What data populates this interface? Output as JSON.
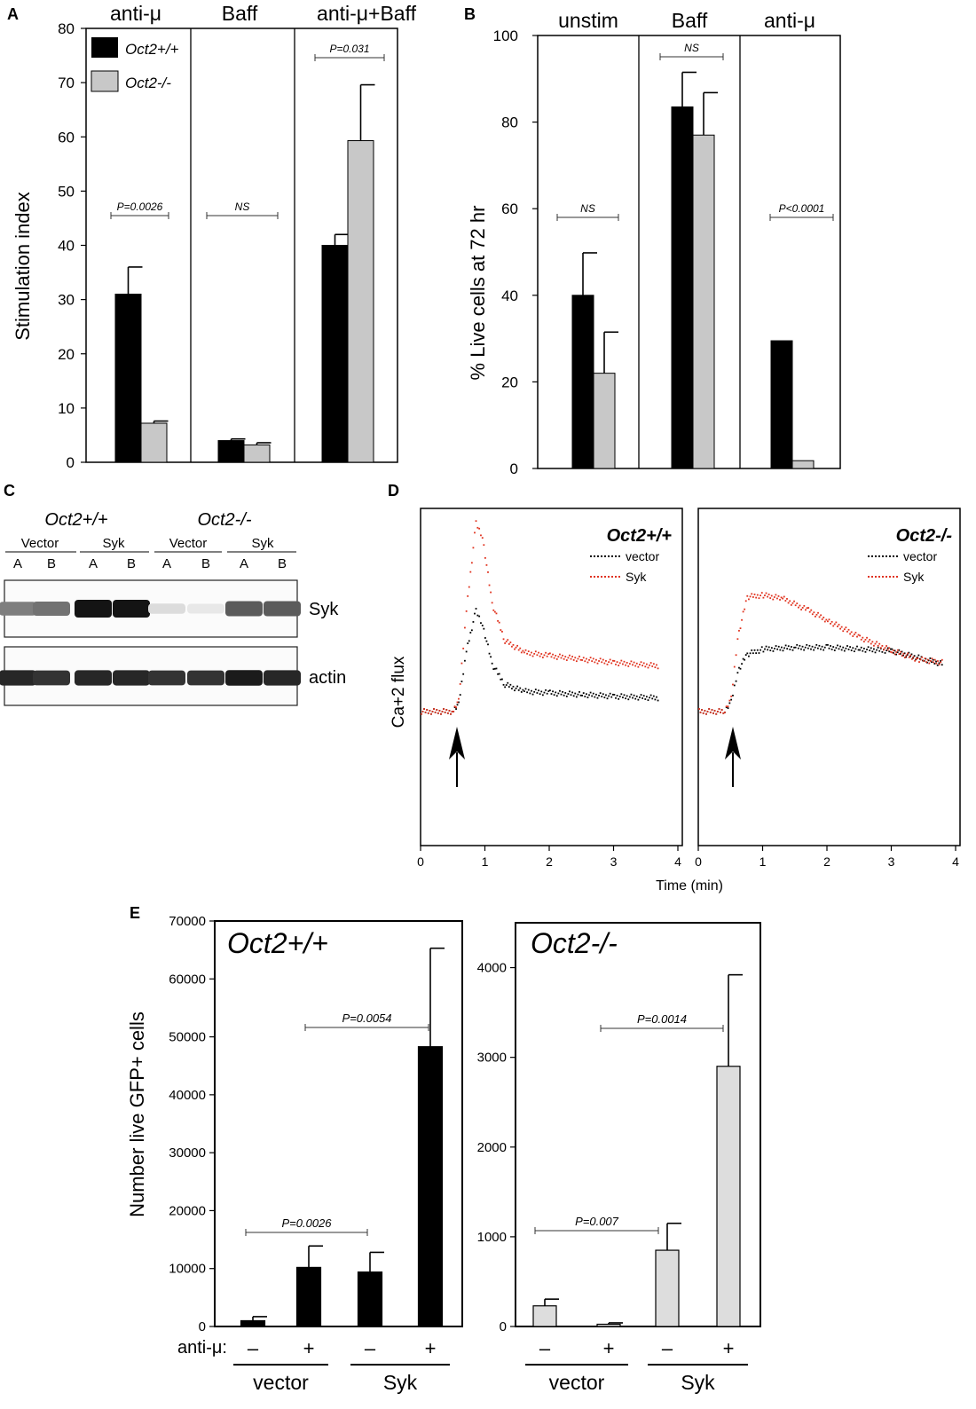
{
  "panels": {
    "A": {
      "letter": "A"
    },
    "B": {
      "letter": "B"
    },
    "C": {
      "letter": "C"
    },
    "D": {
      "letter": "D"
    },
    "E": {
      "letter": "E"
    }
  },
  "colors": {
    "wt": "#000000",
    "ko": "#c8c8c8",
    "ko_light": "#dddddd",
    "red": "#e0321e",
    "axis": "#000000"
  },
  "chart_data": [
    {
      "id": "A",
      "type": "bar",
      "ylabel": "Stimulation index",
      "ylim": [
        0,
        80
      ],
      "yticks": [
        "0",
        "10",
        "20",
        "30",
        "40",
        "50",
        "60",
        "70",
        "80"
      ],
      "groups": [
        "anti-μ",
        "Baff",
        "anti-μ+Baff"
      ],
      "legend": [
        "Oct2+/+",
        "Oct2-/-"
      ],
      "series": [
        {
          "name": "Oct2+/+",
          "values": [
            31,
            4,
            40
          ],
          "errors": [
            5,
            0.3,
            2
          ]
        },
        {
          "name": "Oct2-/-",
          "values": [
            7.2,
            3.2,
            59.3
          ],
          "errors": [
            0.4,
            0.4,
            10.3
          ]
        }
      ],
      "pvalues": [
        "P=0.0026",
        "NS",
        "P=0.031"
      ]
    },
    {
      "id": "B",
      "type": "bar",
      "ylabel": "% Live cells at 72 hr",
      "ylim": [
        0,
        100
      ],
      "yticks": [
        "0",
        "20",
        "40",
        "60",
        "80",
        "100"
      ],
      "groups": [
        "unstim",
        "Baff",
        "anti-μ"
      ],
      "series": [
        {
          "name": "Oct2+/+",
          "values": [
            40,
            83.5,
            29.5
          ],
          "errors": [
            9.8,
            8,
            0
          ]
        },
        {
          "name": "Oct2-/-",
          "values": [
            22,
            77,
            1.8
          ],
          "errors": [
            9.5,
            9.8,
            0
          ]
        }
      ],
      "pvalues": [
        "NS",
        "NS",
        "P<0.0001"
      ]
    },
    {
      "id": "D",
      "type": "scatter",
      "ylabel": "Ca+2 flux",
      "xlabel": "Time (min)",
      "xlim": [
        0,
        4
      ],
      "xticks": [
        "0",
        "1",
        "2",
        "3",
        "4"
      ],
      "legend": [
        "vector",
        "Syk"
      ],
      "panels": [
        {
          "title": "Oct2+/+",
          "series": [
            {
              "name": "vector",
              "points": [
                [
                  0,
                  0.4
                ],
                [
                  0.5,
                  0.4
                ],
                [
                  0.58,
                  0.42
                ],
                [
                  0.7,
                  0.58
                ],
                [
                  0.85,
                  0.7
                ],
                [
                  0.95,
                  0.66
                ],
                [
                  1.1,
                  0.54
                ],
                [
                  1.3,
                  0.48
                ],
                [
                  1.6,
                  0.46
                ],
                [
                  2,
                  0.455
                ],
                [
                  2.5,
                  0.45
                ],
                [
                  3,
                  0.445
                ],
                [
                  3.7,
                  0.44
                ]
              ]
            },
            {
              "name": "Syk",
              "points": [
                [
                  0,
                  0.4
                ],
                [
                  0.5,
                  0.4
                ],
                [
                  0.58,
                  0.43
                ],
                [
                  0.7,
                  0.7
                ],
                [
                  0.85,
                  0.96
                ],
                [
                  0.95,
                  0.92
                ],
                [
                  1.1,
                  0.72
                ],
                [
                  1.3,
                  0.61
                ],
                [
                  1.6,
                  0.575
                ],
                [
                  2,
                  0.565
                ],
                [
                  2.5,
                  0.555
                ],
                [
                  3,
                  0.545
                ],
                [
                  3.7,
                  0.535
                ]
              ]
            }
          ]
        },
        {
          "title": "Oct2-/-",
          "series": [
            {
              "name": "vector",
              "points": [
                [
                  0,
                  0.4
                ],
                [
                  0.4,
                  0.4
                ],
                [
                  0.5,
                  0.43
                ],
                [
                  0.6,
                  0.52
                ],
                [
                  0.75,
                  0.57
                ],
                [
                  1,
                  0.585
                ],
                [
                  1.5,
                  0.59
                ],
                [
                  2,
                  0.59
                ],
                [
                  2.5,
                  0.585
                ],
                [
                  3,
                  0.58
                ],
                [
                  3.5,
                  0.555
                ],
                [
                  3.8,
                  0.54
                ]
              ]
            },
            {
              "name": "Syk",
              "points": [
                [
                  0,
                  0.4
                ],
                [
                  0.4,
                  0.4
                ],
                [
                  0.5,
                  0.44
                ],
                [
                  0.6,
                  0.62
                ],
                [
                  0.75,
                  0.74
                ],
                [
                  1,
                  0.745
                ],
                [
                  1.3,
                  0.735
                ],
                [
                  1.7,
                  0.7
                ],
                [
                  2,
                  0.67
                ],
                [
                  2.5,
                  0.62
                ],
                [
                  3,
                  0.58
                ],
                [
                  3.4,
                  0.555
                ],
                [
                  3.8,
                  0.545
                ]
              ]
            }
          ]
        }
      ]
    },
    {
      "id": "E",
      "type": "bar",
      "ylabel": "Number live GFP+ cells",
      "xlabel_prefix": "anti-μ:",
      "categories": [
        "–",
        "+",
        "–",
        "+"
      ],
      "groups": [
        "vector",
        "Syk"
      ],
      "panels": [
        {
          "title": "Oct2+/+",
          "ylim": [
            0,
            70000
          ],
          "yticks": [
            "0",
            "10000",
            "20000",
            "30000",
            "40000",
            "50000",
            "60000",
            "70000"
          ],
          "values": [
            1000,
            10200,
            9400,
            48300
          ],
          "errors": [
            700,
            3700,
            3400,
            17000
          ],
          "pvalues": [
            "P=0.0026",
            "P=0.0054"
          ]
        },
        {
          "title": "Oct2-/-",
          "ylim": [
            0,
            4500
          ],
          "yticks": [
            "0",
            "1000",
            "2000",
            "3000",
            "4000"
          ],
          "values": [
            230,
            25,
            850,
            2900
          ],
          "errors": [
            75,
            15,
            300,
            1020
          ],
          "pvalues": [
            "P=0.007",
            "P=0.0014"
          ]
        }
      ]
    }
  ],
  "blot": {
    "genotypes": [
      "Oct2+/+",
      "Oct2-/-"
    ],
    "conditions": [
      "Vector",
      "Syk",
      "Vector",
      "Syk"
    ],
    "lanes": [
      "A",
      "B",
      "A",
      "B",
      "A",
      "B",
      "A",
      "B"
    ],
    "band_labels": [
      "Syk",
      "actin"
    ],
    "syk_intensity": [
      0.55,
      0.6,
      1.0,
      1.0,
      0.15,
      0.1,
      0.7,
      0.7
    ],
    "actin_intensity": [
      0.9,
      0.85,
      0.9,
      0.9,
      0.85,
      0.85,
      0.95,
      0.9
    ]
  }
}
